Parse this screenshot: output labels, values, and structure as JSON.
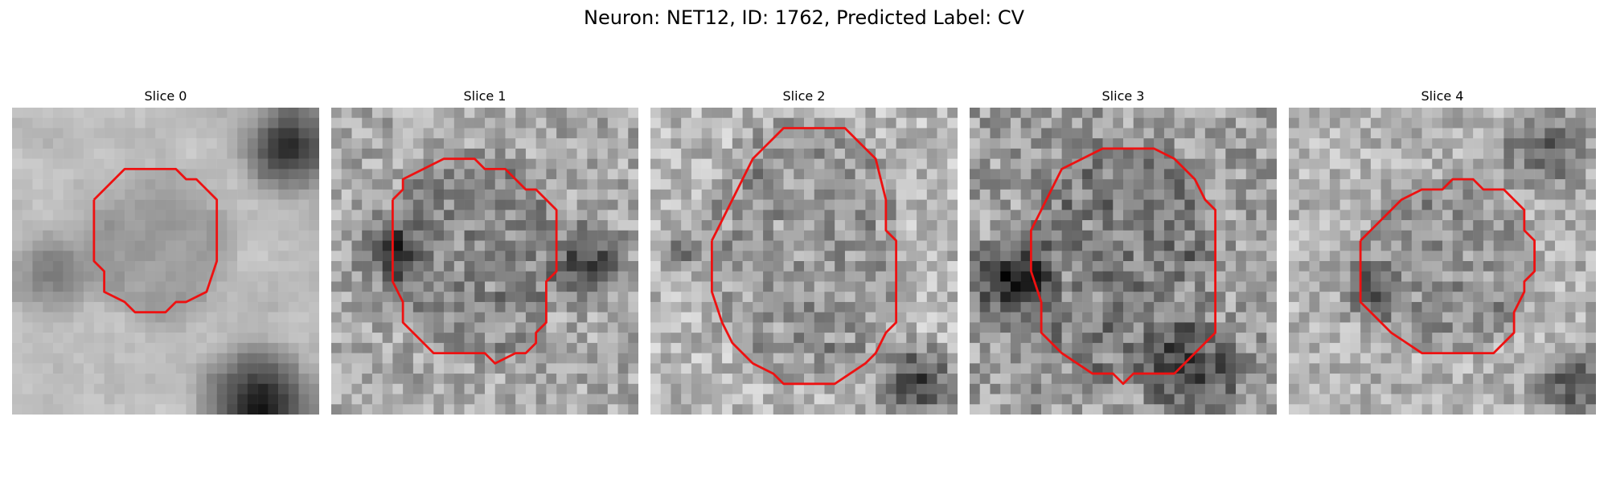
{
  "figure": {
    "title": "Neuron: NET12, ID: 1762, Predicted Label: CV"
  },
  "panels": [
    {
      "title": "Slice 0"
    },
    {
      "title": "Slice 1"
    },
    {
      "title": "Slice 2"
    },
    {
      "title": "Slice 3"
    },
    {
      "title": "Slice 4"
    }
  ],
  "style": {
    "contour_color": "#ee1111",
    "colormap": "grayscale"
  }
}
